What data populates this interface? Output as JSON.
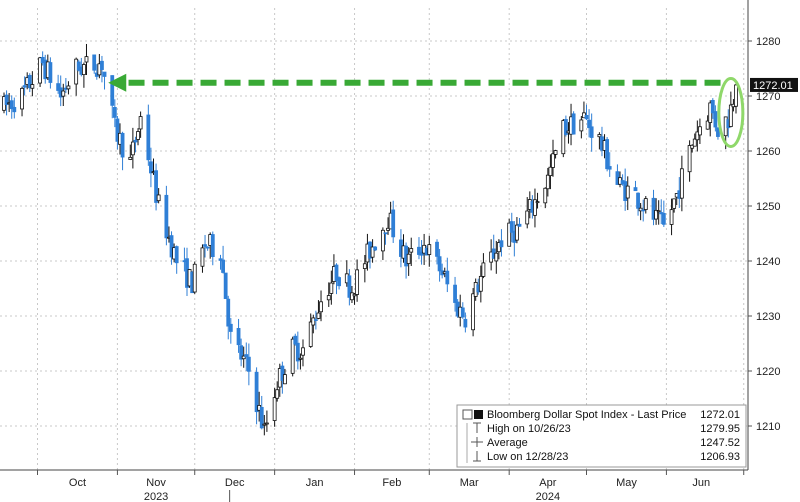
{
  "chart_data": {
    "type": "candlestick",
    "title": "",
    "xlabel": "",
    "ylabel": "",
    "x_range": [
      "2023-09-18",
      "2024-06-28"
    ],
    "ylim": [
      1202,
      1286
    ],
    "y_ticks": [
      1210,
      1220,
      1230,
      1240,
      1250,
      1260,
      1270,
      1280
    ],
    "x_ticks": [
      {
        "label": "Oct",
        "date": "2023-10-01"
      },
      {
        "label": "Nov",
        "date": "2023-11-01"
      },
      {
        "label": "Dec",
        "date": "2023-12-01"
      },
      {
        "label": "Jan",
        "date": "2024-01-01"
      },
      {
        "label": "Feb",
        "date": "2024-02-01"
      },
      {
        "label": "Mar",
        "date": "2024-03-01"
      },
      {
        "label": "Apr",
        "date": "2024-04-01"
      },
      {
        "label": "May",
        "date": "2024-05-01"
      },
      {
        "label": "Jun",
        "date": "2024-06-01"
      }
    ],
    "year_labels": [
      {
        "label": "2023",
        "date": "2023-11-01"
      },
      {
        "label": "2024",
        "date": "2024-04-01"
      }
    ],
    "grid": true,
    "last_price_label": "1272.01",
    "up_color": "#111111",
    "down_color": "#2f7fd6",
    "arrow_color": "#39a935",
    "highlight_color": "#8fd86a",
    "anchors": [
      [
        "2023-09-18",
        1268
      ],
      [
        "2023-09-25",
        1270
      ],
      [
        "2023-10-03",
        1276
      ],
      [
        "2023-10-10",
        1270
      ],
      [
        "2023-10-16",
        1275
      ],
      [
        "2023-10-26",
        1276
      ],
      [
        "2023-10-31",
        1264
      ],
      [
        "2023-11-06",
        1258
      ],
      [
        "2023-11-10",
        1266
      ],
      [
        "2023-11-17",
        1250
      ],
      [
        "2023-11-24",
        1240
      ],
      [
        "2023-11-30",
        1236
      ],
      [
        "2023-12-05",
        1243
      ],
      [
        "2023-12-11",
        1242
      ],
      [
        "2023-12-15",
        1226
      ],
      [
        "2023-12-22",
        1220
      ],
      [
        "2023-12-28",
        1209
      ],
      [
        "2024-01-02",
        1218
      ],
      [
        "2024-01-08",
        1224
      ],
      [
        "2024-01-12",
        1224
      ],
      [
        "2024-01-19",
        1233
      ],
      [
        "2024-01-25",
        1238
      ],
      [
        "2024-01-31",
        1235
      ],
      [
        "2024-02-07",
        1242
      ],
      [
        "2024-02-14",
        1248
      ],
      [
        "2024-02-21",
        1240
      ],
      [
        "2024-02-28",
        1243
      ],
      [
        "2024-03-06",
        1238
      ],
      [
        "2024-03-11",
        1232
      ],
      [
        "2024-03-15",
        1230
      ],
      [
        "2024-03-22",
        1238
      ],
      [
        "2024-03-29",
        1244
      ],
      [
        "2024-04-05",
        1246
      ],
      [
        "2024-04-10",
        1250
      ],
      [
        "2024-04-16",
        1255
      ],
      [
        "2024-04-22",
        1264
      ],
      [
        "2024-04-30",
        1266
      ],
      [
        "2024-05-06",
        1262
      ],
      [
        "2024-05-13",
        1254
      ],
      [
        "2024-05-20",
        1252
      ],
      [
        "2024-05-27",
        1248
      ],
      [
        "2024-05-31",
        1246
      ],
      [
        "2024-06-05",
        1252
      ],
      [
        "2024-06-12",
        1263
      ],
      [
        "2024-06-18",
        1268
      ],
      [
        "2024-06-21",
        1264
      ],
      [
        "2024-06-25",
        1266
      ],
      [
        "2024-06-28",
        1272
      ]
    ],
    "legend": {
      "rows": [
        {
          "label": "Bloomberg Dollar Spot Index - Last Price",
          "value": "1272.01"
        },
        {
          "label": "High on 10/26/23",
          "value": "1279.95"
        },
        {
          "label": "Average",
          "value": "1247.52"
        },
        {
          "label": "Low on 12/28/23",
          "value": "1206.93"
        }
      ]
    }
  }
}
